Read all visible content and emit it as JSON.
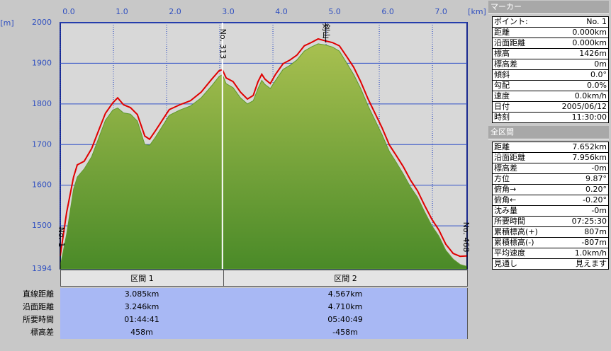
{
  "chart_data": {
    "type": "area",
    "x_unit": "[km]",
    "y_unit": "[m]",
    "x": [
      0,
      0.12,
      0.25,
      0.32,
      0.45,
      0.59,
      0.72,
      0.85,
      0.99,
      1.08,
      1.19,
      1.32,
      1.45,
      1.59,
      1.68,
      1.79,
      1.92,
      2.05,
      2.25,
      2.45,
      2.65,
      2.85,
      2.99,
      3.05,
      3.12,
      3.25,
      3.39,
      3.52,
      3.63,
      3.72,
      3.79,
      3.85,
      3.95,
      4.05,
      4.19,
      4.32,
      4.45,
      4.59,
      4.72,
      4.85,
      4.99,
      5.12,
      5.25,
      5.39,
      5.52,
      5.65,
      5.79,
      5.92,
      6.05,
      6.19,
      6.32,
      6.45,
      6.59,
      6.72,
      6.85,
      6.99,
      7.12,
      7.25,
      7.39,
      7.52,
      7.652
    ],
    "series": [
      {
        "type": "area",
        "color": "#5f9a2c",
        "values": [
          1400,
          1480,
          1590,
          1620,
          1640,
          1670,
          1715,
          1760,
          1785,
          1790,
          1778,
          1775,
          1758,
          1700,
          1698,
          1718,
          1745,
          1772,
          1785,
          1795,
          1815,
          1845,
          1868,
          1872,
          1850,
          1840,
          1815,
          1800,
          1808,
          1838,
          1858,
          1848,
          1838,
          1858,
          1885,
          1895,
          1908,
          1930,
          1940,
          1948,
          1945,
          1940,
          1930,
          1900,
          1872,
          1838,
          1795,
          1760,
          1725,
          1683,
          1656,
          1628,
          1595,
          1570,
          1535,
          1500,
          1475,
          1440,
          1418,
          1405,
          1400
        ]
      },
      {
        "type": "line",
        "color": "#e00000",
        "values": [
          1426,
          1533,
          1620,
          1650,
          1659,
          1690,
          1734,
          1777,
          1803,
          1815,
          1798,
          1791,
          1774,
          1721,
          1713,
          1734,
          1760,
          1786,
          1798,
          1808,
          1829,
          1861,
          1882,
          1884,
          1864,
          1855,
          1829,
          1812,
          1821,
          1855,
          1873,
          1861,
          1850,
          1873,
          1899,
          1908,
          1920,
          1943,
          1951,
          1960,
          1955,
          1951,
          1943,
          1916,
          1890,
          1855,
          1812,
          1777,
          1742,
          1699,
          1673,
          1646,
          1612,
          1586,
          1551,
          1516,
          1490,
          1455,
          1432,
          1425,
          1426
        ]
      }
    ],
    "xlim": [
      0,
      7.652
    ],
    "xticks": [
      {
        "value": 0,
        "label": "0.0"
      },
      {
        "value": 1,
        "label": "1.0"
      },
      {
        "value": 2,
        "label": "2.0"
      },
      {
        "value": 3,
        "label": "3.0"
      },
      {
        "value": 4,
        "label": "4.0"
      },
      {
        "value": 5,
        "label": "5.0"
      },
      {
        "value": 6,
        "label": "6.0"
      },
      {
        "value": 7,
        "label": "7.0"
      }
    ],
    "ylim": [
      1394,
      2000
    ],
    "yticks": [
      1394,
      1500,
      1600,
      1700,
      1800,
      1900,
      2000
    ],
    "grid": true,
    "annotations": [
      {
        "x": 0,
        "label": "No. 1"
      },
      {
        "x": 3.05,
        "label": "No. 313"
      },
      {
        "x": 4.99,
        "label": "剣山"
      },
      {
        "x": 7.652,
        "label": "No. 468"
      }
    ]
  },
  "marker_panel": {
    "title": "マーカー",
    "rows": [
      [
        "ポイント:",
        "No. 1"
      ],
      [
        "距離",
        "0.000km"
      ],
      [
        "沿面距離",
        "0.000km"
      ],
      [
        "標高",
        "1426m"
      ],
      [
        "標高差",
        "0m"
      ],
      [
        "傾斜",
        "0.0°"
      ],
      [
        "勾配",
        "0.0%"
      ],
      [
        "速度",
        "0.0km/h"
      ],
      [
        "日付",
        "2005/06/12"
      ],
      [
        "時刻",
        "11:30:00"
      ]
    ]
  },
  "total_panel": {
    "title": "全区間",
    "rows": [
      [
        "距離",
        "7.652km"
      ],
      [
        "沿面距離",
        "7.956km"
      ],
      [
        "標高差",
        "-0m"
      ],
      [
        "方位",
        "9.87°"
      ],
      [
        "俯角→",
        "0.20°"
      ],
      [
        "俯角←",
        "-0.20°"
      ],
      [
        "沈み量",
        "-0m"
      ],
      [
        "所要時間",
        "07:25:30"
      ],
      [
        "累積標高(+)",
        "807m"
      ],
      [
        "累積標高(-)",
        "-807m"
      ],
      [
        "平均速度",
        "1.0km/h"
      ],
      [
        "見通し",
        "見えます"
      ]
    ]
  },
  "segments_table": {
    "columns": [
      "区間 1",
      "区間 2"
    ],
    "rows": [
      {
        "label": "直線距離",
        "values": [
          "3.085km",
          "4.567km"
        ]
      },
      {
        "label": "沿面距離",
        "values": [
          "3.246km",
          "4.710km"
        ]
      },
      {
        "label": "所要時間",
        "values": [
          "01:44:41",
          "05:40:49"
        ]
      },
      {
        "label": "標高差",
        "values": [
          "458m",
          "-458m"
        ]
      }
    ]
  }
}
